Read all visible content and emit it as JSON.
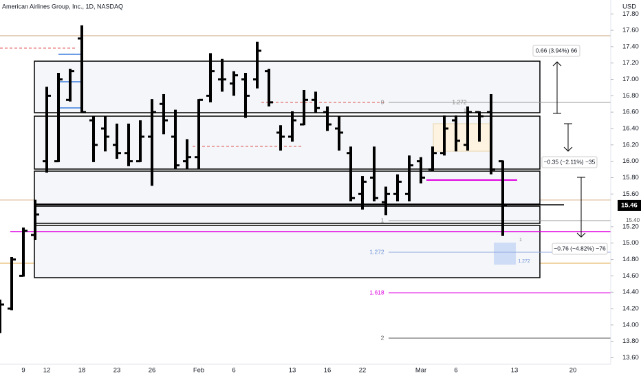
{
  "chart_data": {
    "type": "ohlc",
    "title": "American Airlines Group, Inc., 1D, NASDAQ",
    "y_axis_label": "USD",
    "color": "#000000",
    "categories": [
      null,
      null,
      "9",
      null,
      "12",
      null,
      null,
      "18",
      null,
      null,
      "23",
      null,
      null,
      "26",
      null,
      null,
      null,
      "Feb",
      null,
      null,
      "6",
      null,
      null,
      null,
      null,
      "13",
      null,
      null,
      "16",
      null,
      null,
      "22",
      null,
      null,
      null,
      null,
      "Mar",
      null,
      null,
      "6",
      null,
      null,
      null,
      null,
      "13",
      null,
      null,
      null,
      null,
      "20"
    ],
    "open": [
      14.2,
      14.2,
      14.6,
      15.1,
      16.0,
      16.0,
      16.75,
      17.5,
      16.5,
      16.4,
      16.2,
      16.1,
      16.0,
      16.3,
      16.7,
      16.3,
      16.0,
      16.05,
      16.8,
      17.0,
      16.95,
      17.0,
      17.0,
      17.1,
      16.35,
      16.3,
      16.45,
      16.75,
      16.6,
      16.4,
      16.1,
      15.6,
      15.8,
      15.5,
      15.6,
      15.6,
      16.0,
      15.9,
      16.1,
      16.5,
      16.2,
      16.6,
      16.6,
      16.0,
      null,
      null,
      null,
      null,
      null,
      null
    ],
    "high": [
      14.31,
      14.83,
      15.19,
      15.53,
      16.91,
      17.08,
      17.13,
      17.66,
      16.55,
      16.55,
      16.46,
      16.46,
      16.5,
      16.76,
      16.82,
      16.63,
      16.27,
      16.76,
      17.32,
      17.25,
      17.1,
      17.08,
      17.46,
      17.13,
      16.44,
      16.61,
      16.87,
      16.85,
      16.67,
      16.55,
      16.18,
      15.82,
      16.18,
      15.69,
      15.84,
      16.07,
      16.05,
      16.18,
      16.56,
      16.56,
      16.67,
      16.61,
      16.82,
      16.01,
      null,
      null,
      null,
      null,
      null,
      null
    ],
    "low": [
      13.9,
      14.18,
      14.59,
      15.04,
      15.86,
      15.99,
      16.73,
      16.59,
      15.99,
      16.12,
      16.03,
      15.94,
      15.99,
      15.7,
      16.33,
      15.9,
      15.9,
      15.9,
      16.72,
      16.85,
      16.8,
      16.53,
      16.89,
      16.67,
      16.13,
      16.24,
      16.44,
      16.59,
      16.37,
      16.13,
      15.51,
      15.41,
      15.51,
      15.34,
      15.51,
      15.51,
      15.73,
      15.88,
      16.07,
      16.12,
      16.13,
      16.24,
      15.84,
      15.09,
      null,
      null,
      null,
      null,
      null,
      null
    ],
    "close": [
      14.25,
      14.8,
      15.15,
      15.35,
      16.8,
      17.0,
      17.1,
      16.6,
      16.2,
      16.3,
      16.1,
      16.0,
      16.3,
      16.6,
      16.5,
      15.95,
      16.05,
      16.75,
      17.1,
      17.0,
      17.05,
      16.8,
      17.35,
      16.72,
      16.3,
      16.5,
      16.75,
      16.65,
      16.45,
      16.35,
      15.55,
      15.75,
      15.55,
      15.6,
      15.75,
      15.95,
      15.8,
      16.1,
      16.4,
      16.25,
      16.6,
      16.55,
      15.9,
      15.46,
      null,
      null,
      null,
      null,
      null,
      null
    ],
    "last_price": {
      "value": 15.46,
      "label": "15.46"
    },
    "ylim": [
      13.52,
      17.97
    ],
    "yticks": [
      {
        "value": 17.8,
        "label": "17.80"
      },
      {
        "value": 17.6,
        "label": "17.60"
      },
      {
        "value": 17.4,
        "label": "17.40"
      },
      {
        "value": 17.2,
        "label": "17.20"
      },
      {
        "value": 17.0,
        "label": "17.00"
      },
      {
        "value": 16.8,
        "label": "16.80"
      },
      {
        "value": 16.6,
        "label": "16.60"
      },
      {
        "value": 16.4,
        "label": "16.40"
      },
      {
        "value": 16.2,
        "label": "16.20"
      },
      {
        "value": 16.0,
        "label": "16.00"
      },
      {
        "value": 15.8,
        "label": "15.80"
      },
      {
        "value": 15.6,
        "label": "15.60"
      },
      {
        "value": 15.2,
        "label": "15.20"
      },
      {
        "value": 15.0,
        "label": "15.00"
      },
      {
        "value": 14.8,
        "label": "14.80"
      },
      {
        "value": 14.6,
        "label": "14.60"
      },
      {
        "value": 14.4,
        "label": "14.40"
      },
      {
        "value": 14.2,
        "label": "14.20"
      },
      {
        "value": 14.0,
        "label": "14.00"
      },
      {
        "value": 13.8,
        "label": "13.80"
      },
      {
        "value": 13.6,
        "label": "13.60"
      }
    ],
    "grid": false,
    "annotations": [
      "0.66 (3.94%) 66",
      "−0.35 (−2.11%) −35",
      "−0.76 (−4.82%) −76",
      "0",
      "1.272",
      "1",
      "1.272",
      "1.618",
      "2",
      "1",
      "1",
      "1.272",
      "15.40"
    ]
  }
}
